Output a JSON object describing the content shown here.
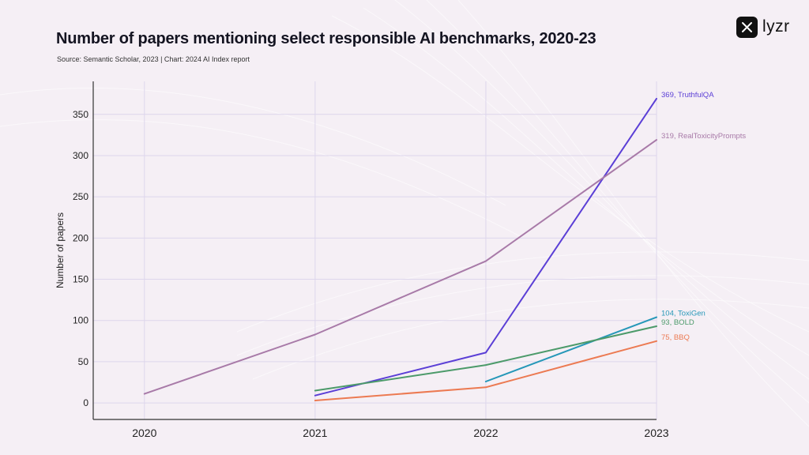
{
  "header": {
    "title": "Number of papers mentioning select responsible AI benchmarks, 2020-23",
    "source": "Source: Semantic Scholar, 2023 | Chart: 2024 AI Index report"
  },
  "brand": {
    "name": "lyzr",
    "icon": "lyzr-logo-icon"
  },
  "colors": {
    "background": "#f5eff5",
    "grid": "#ddd6ec",
    "axis": "#333333"
  },
  "chart_data": {
    "type": "line",
    "title": "Number of papers mentioning select responsible AI benchmarks, 2020-23",
    "xlabel": "",
    "ylabel": "Number of papers",
    "x": [
      2020,
      2021,
      2022,
      2023
    ],
    "x_tick_labels": [
      "2020",
      "2021",
      "2022",
      "2023"
    ],
    "y_ticks": [
      0,
      50,
      100,
      150,
      200,
      250,
      300,
      350
    ],
    "y_tick_labels": [
      "0",
      "50",
      "100",
      "150",
      "200",
      "250",
      "300",
      "350"
    ],
    "xlim": [
      2019.7,
      2023.0
    ],
    "ylim": [
      -20,
      390
    ],
    "grid": true,
    "legend": "end-of-line labels",
    "series": [
      {
        "name": "TruthfulQA",
        "color": "#5b3fd6",
        "values": [
          null,
          9,
          61,
          369
        ],
        "end_label": "369, TruthfulQA"
      },
      {
        "name": "RealToxicityPrompts",
        "color": "#a87aa8",
        "values": [
          11,
          83,
          172,
          319
        ],
        "end_label": "319, RealToxicityPrompts"
      },
      {
        "name": "ToxiGen",
        "color": "#2597b8",
        "values": [
          null,
          null,
          26,
          104
        ],
        "end_label": "104, ToxiGen"
      },
      {
        "name": "BOLD",
        "color": "#4c9a6a",
        "values": [
          null,
          15,
          46,
          93
        ],
        "end_label": "93, BOLD"
      },
      {
        "name": "BBQ",
        "color": "#ec7a52",
        "values": [
          null,
          3,
          19,
          75
        ],
        "end_label": "75, BBQ"
      }
    ]
  }
}
